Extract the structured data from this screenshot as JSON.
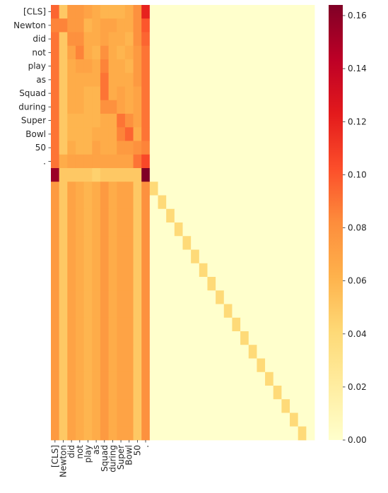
{
  "chart_data": {
    "type": "heatmap",
    "title": "",
    "xlabel": "",
    "ylabel": "",
    "colormap": "YlOrRd",
    "colors": {
      "min": "#ffffcc",
      "max": "#800026",
      "tick": "#262626",
      "background": "#ffffff"
    },
    "rows": 32,
    "cols": 32,
    "tokens": [
      "[CLS]",
      "Newton",
      "did",
      "not",
      "play",
      "as",
      "Squad",
      "during",
      "Super",
      "Bowl",
      "50",
      "."
    ],
    "x_tick_labels": [
      "[CLS]",
      "Newton",
      "did",
      "not",
      "play",
      "as",
      "Squad",
      "during",
      "Super",
      "Bowl",
      "50",
      "."
    ],
    "y_tick_labels": [
      "[CLS]",
      "Newton",
      "did",
      "not",
      "play",
      "as",
      "Squad",
      "during",
      "Super",
      "Bowl",
      "50",
      "."
    ],
    "vmin": 0.0,
    "vmax": 0.164,
    "colorbar": {
      "ticks": [
        0.0,
        0.02,
        0.04,
        0.06,
        0.08,
        0.1,
        0.12,
        0.14,
        0.16
      ],
      "tick_labels": [
        "0.00",
        "0.02",
        "0.04",
        "0.06",
        "0.08",
        "0.10",
        "0.12",
        "0.14",
        "0.16"
      ]
    },
    "token_block_values": [
      [
        0.095,
        0.05,
        0.075,
        0.075,
        0.07,
        0.065,
        0.06,
        0.06,
        0.06,
        0.065,
        0.08,
        0.12
      ],
      [
        0.085,
        0.085,
        0.075,
        0.075,
        0.06,
        0.065,
        0.07,
        0.07,
        0.065,
        0.065,
        0.08,
        0.1
      ],
      [
        0.09,
        0.05,
        0.08,
        0.08,
        0.065,
        0.065,
        0.07,
        0.065,
        0.065,
        0.06,
        0.08,
        0.095
      ],
      [
        0.09,
        0.05,
        0.07,
        0.085,
        0.065,
        0.06,
        0.08,
        0.065,
        0.06,
        0.065,
        0.075,
        0.09
      ],
      [
        0.09,
        0.05,
        0.065,
        0.07,
        0.07,
        0.065,
        0.085,
        0.065,
        0.065,
        0.06,
        0.075,
        0.09
      ],
      [
        0.09,
        0.05,
        0.065,
        0.065,
        0.065,
        0.065,
        0.09,
        0.065,
        0.065,
        0.065,
        0.075,
        0.09
      ],
      [
        0.09,
        0.05,
        0.065,
        0.065,
        0.06,
        0.06,
        0.09,
        0.065,
        0.07,
        0.065,
        0.07,
        0.09
      ],
      [
        0.09,
        0.05,
        0.065,
        0.065,
        0.06,
        0.06,
        0.08,
        0.08,
        0.07,
        0.065,
        0.07,
        0.09
      ],
      [
        0.09,
        0.05,
        0.06,
        0.06,
        0.06,
        0.06,
        0.065,
        0.065,
        0.09,
        0.08,
        0.07,
        0.09
      ],
      [
        0.09,
        0.05,
        0.06,
        0.06,
        0.06,
        0.065,
        0.065,
        0.065,
        0.085,
        0.095,
        0.065,
        0.09
      ],
      [
        0.09,
        0.05,
        0.065,
        0.06,
        0.06,
        0.07,
        0.065,
        0.065,
        0.075,
        0.075,
        0.08,
        0.085
      ],
      [
        0.09,
        0.065,
        0.07,
        0.07,
        0.07,
        0.07,
        0.07,
        0.07,
        0.07,
        0.07,
        0.09,
        0.105
      ]
    ],
    "sep_row_values": [
      0.155,
      0.05,
      0.05,
      0.05,
      0.05,
      0.045,
      0.05,
      0.05,
      0.05,
      0.05,
      0.05,
      0.164
    ],
    "padding_row_token_values": [
      0.075,
      0.05,
      0.07,
      0.065,
      0.06,
      0.065,
      0.075,
      0.065,
      0.07,
      0.07,
      0.05,
      0.08
    ],
    "padding_diagonal_value": 0.04,
    "background_value": 0.0
  }
}
